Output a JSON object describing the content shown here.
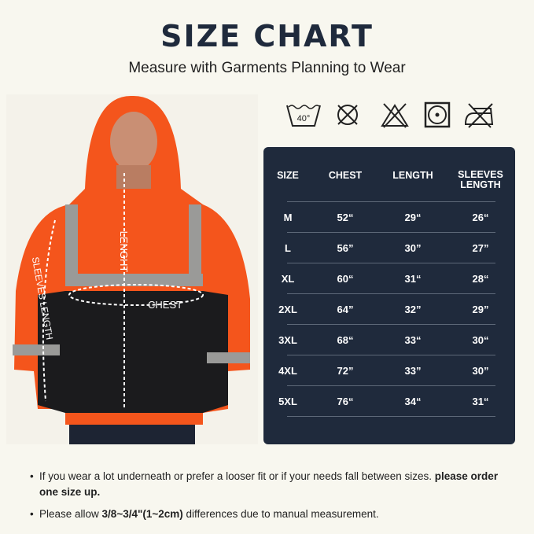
{
  "title": "SIZE CHART",
  "subtitle": "Measure with Garments Planning to Wear",
  "photo_labels": {
    "length": "LENGHT",
    "sleeves": "SLEEVES LENGTH",
    "chest": "CHEST"
  },
  "care_icons": [
    "wash-40-icon",
    "no-dry-clean-icon",
    "no-bleach-icon",
    "tumble-dry-icon",
    "no-iron-icon"
  ],
  "care_wash_temp": "40°",
  "table": {
    "headers": [
      "SIZE",
      "CHEST",
      "LENGTH",
      "SLEEVES LENGTH"
    ],
    "rows": [
      {
        "size": "M",
        "chest": "52“",
        "length": "29“",
        "sleeves": "26“"
      },
      {
        "size": "L",
        "chest": "56”",
        "length": "30”",
        "sleeves": "27”"
      },
      {
        "size": "XL",
        "chest": "60“",
        "length": "31“",
        "sleeves": "28“"
      },
      {
        "size": "2XL",
        "chest": "64”",
        "length": "32”",
        "sleeves": "29”"
      },
      {
        "size": "3XL",
        "chest": "68“",
        "length": "33“",
        "sleeves": "30“"
      },
      {
        "size": "4XL",
        "chest": "72”",
        "length": "33”",
        "sleeves": "30”"
      },
      {
        "size": "5XL",
        "chest": "76“",
        "length": "34“",
        "sleeves": "31“"
      }
    ]
  },
  "notes": [
    {
      "text": "If you wear a lot underneath or prefer a looser fit or if your needs fall between sizes. ",
      "bold": "please order one size up."
    },
    {
      "text": "Please allow ",
      "bold": "3/8~3/4\"(1~2cm)",
      "text2": " differences due to manual measurement."
    }
  ],
  "colors": {
    "table_bg": "#1f2a3c",
    "jacket_orange": "#f4551c",
    "background": "#f8f7ef"
  }
}
